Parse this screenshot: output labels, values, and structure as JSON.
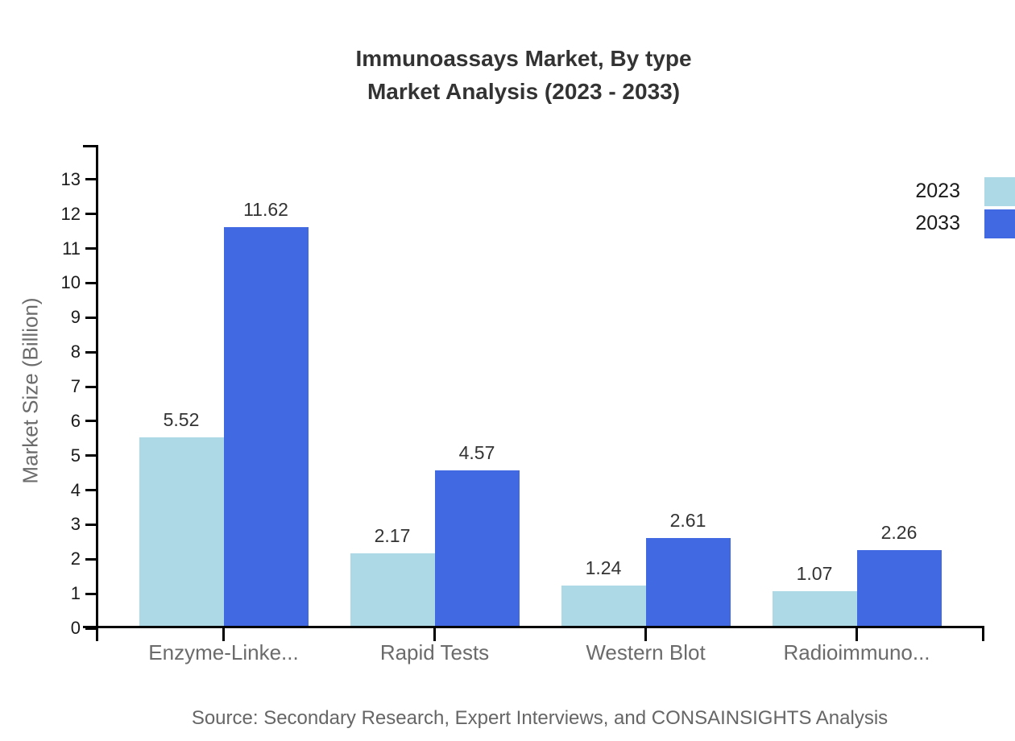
{
  "title": {
    "line1": "Immunoassays Market, By type",
    "line2": "Market Analysis (2023 - 2033)"
  },
  "source": "Source: Secondary Research, Expert Interviews, and CONSAINSIGHTS Analysis",
  "chart_data": {
    "type": "bar",
    "title": "Immunoassays Market, By type Market Analysis (2023 - 2033)",
    "categories": [
      "Enzyme-Linke...",
      "Rapid Tests",
      "Western Blot",
      "Radioimmuno..."
    ],
    "series": [
      {
        "name": "2023",
        "color": "#ADD8E6",
        "values": [
          5.52,
          2.17,
          1.24,
          1.07
        ]
      },
      {
        "name": "2033",
        "color": "#4169E1",
        "values": [
          11.62,
          4.57,
          2.61,
          2.26
        ]
      }
    ],
    "value_labels": [
      "5.52",
      "11.62",
      "2.17",
      "4.57",
      "1.24",
      "2.61",
      "1.07",
      "2.26"
    ],
    "xlabel": "",
    "ylabel": "Market Size (Billion)",
    "ylim": [
      0,
      14
    ],
    "yticks": [
      0,
      1,
      2,
      3,
      4,
      5,
      6,
      7,
      8,
      9,
      10,
      11,
      12,
      13
    ],
    "grid": false,
    "legend_position": "top-right",
    "axis_color": "#000000"
  }
}
